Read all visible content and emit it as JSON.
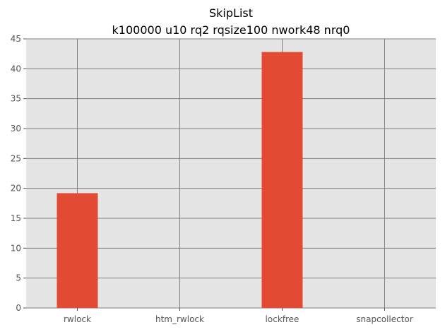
{
  "chart_data": {
    "type": "bar",
    "title": "SkipList",
    "subtitle": "k100000 u10 rq2 rqsize100 nwork48 nrq0",
    "xlabel": "",
    "ylabel": "",
    "categories": [
      "rwlock",
      "htm_rwlock",
      "lockfree",
      "snapcollector"
    ],
    "values": [
      19.2,
      0,
      42.8,
      0
    ],
    "ylim": [
      0,
      45
    ],
    "yticks": [
      0,
      5,
      10,
      15,
      20,
      25,
      30,
      35,
      40,
      45
    ],
    "grid": true,
    "legend": "none",
    "colors": {
      "bar": "#E24A33",
      "plot_background": "#E5E5E5",
      "grid": "#808080",
      "figure_background": "#FFFFFF"
    }
  }
}
